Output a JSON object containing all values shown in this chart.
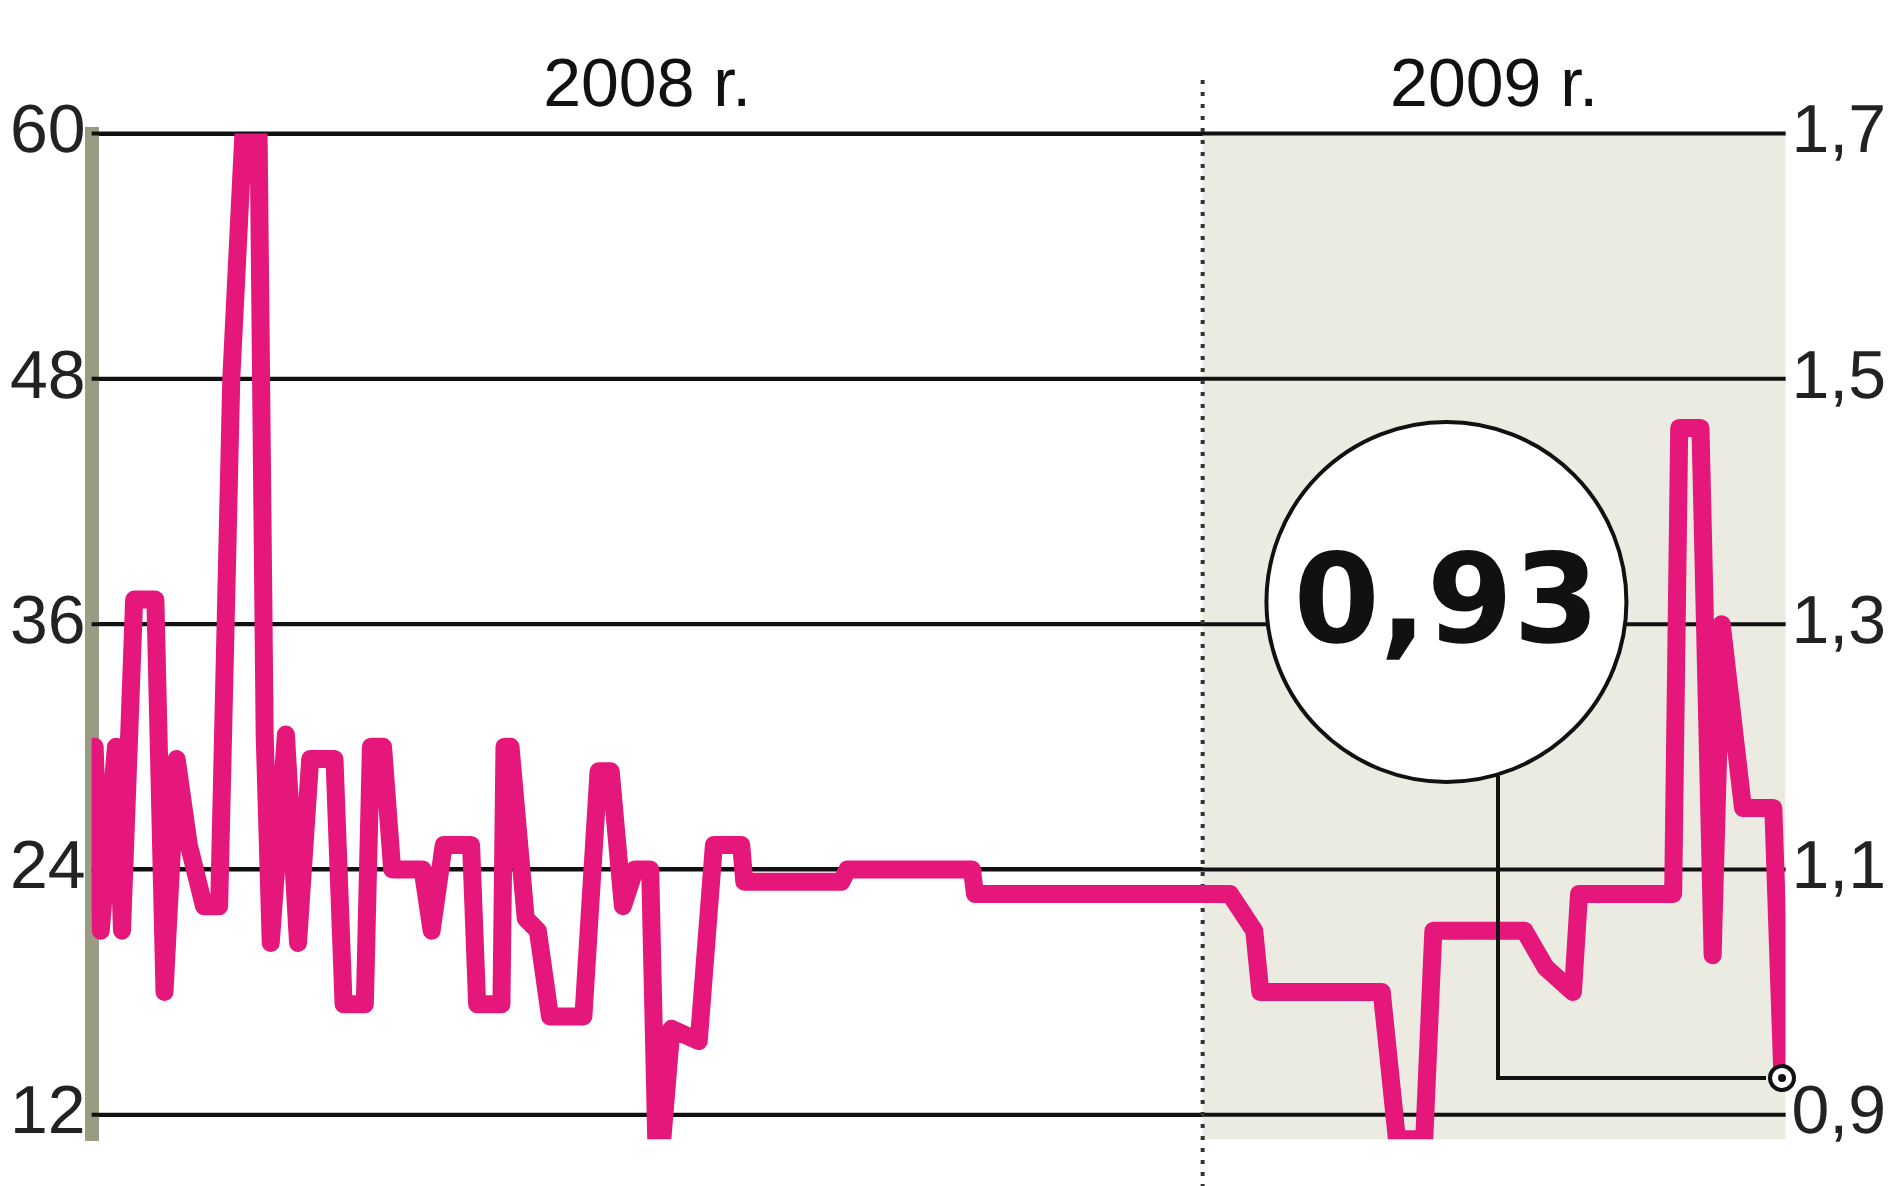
{
  "chart_data": {
    "type": "line",
    "x": [
      "2008-01-02",
      "2008-01-04",
      "2008-01-09",
      "2008-01-11",
      "2008-01-15",
      "2008-01-22",
      "2008-01-25",
      "2008-01-29",
      "2008-02-02",
      "2008-02-07",
      "2008-02-12",
      "2008-02-16",
      "2008-02-20",
      "2008-02-25",
      "2008-02-27",
      "2008-02-29",
      "2008-03-05",
      "2008-03-09",
      "2008-03-13",
      "2008-03-21",
      "2008-03-24",
      "2008-03-31",
      "2008-04-02",
      "2008-04-06",
      "2008-04-09",
      "2008-04-19",
      "2008-04-22",
      "2008-04-26",
      "2008-05-05",
      "2008-05-07",
      "2008-05-15",
      "2008-05-16",
      "2008-05-18",
      "2008-05-23",
      "2008-05-27",
      "2008-05-31",
      "2008-06-11",
      "2008-06-16",
      "2008-06-20",
      "2008-06-24",
      "2008-06-28",
      "2008-07-03",
      "2008-07-05",
      "2008-07-07",
      "2008-07-10",
      "2008-07-19",
      "2008-07-24",
      "2008-08-02",
      "2008-08-03",
      "2008-09-04",
      "2008-09-06",
      "2008-10-14",
      "2008-10-17",
      "2008-10-18",
      "2009-01-10",
      "2009-01-18",
      "2009-01-20",
      "2009-03-01",
      "2009-03-06",
      "2009-03-15",
      "2009-03-18",
      "2009-04-17",
      "2009-04-24",
      "2009-05-03",
      "2009-05-05",
      "2009-06-05",
      "2009-06-07",
      "2009-06-14",
      "2009-06-18",
      "2009-06-21",
      "2009-06-28",
      "2009-07-08",
      "2009-07-11"
    ],
    "series": [
      {
        "color": "#e5177b",
        "axis": "y2",
        "values": [
          1.2,
          1.05,
          1.2,
          1.05,
          1.32,
          1.32,
          1.0,
          1.19,
          1.12,
          1.07,
          1.07,
          1.5,
          1.7,
          1.7,
          1.21,
          1.04,
          1.21,
          1.04,
          1.19,
          1.19,
          0.99,
          0.99,
          1.2,
          1.2,
          1.1,
          1.1,
          1.05,
          1.12,
          1.12,
          0.99,
          0.99,
          1.2,
          1.2,
          1.06,
          1.05,
          0.98,
          0.98,
          1.18,
          1.18,
          1.07,
          1.1,
          1.1,
          0.88,
          0.88,
          0.97,
          0.96,
          1.12,
          1.12,
          1.09,
          1.09,
          1.1,
          1.1,
          1.1,
          1.08,
          1.08,
          1.05,
          1.0,
          1.0,
          0.88,
          0.88,
          1.05,
          1.05,
          1.02,
          1.0,
          1.08,
          1.08,
          1.46,
          1.46,
          1.03,
          1.3,
          1.15,
          1.15,
          0.93
        ]
      }
    ],
    "xlim": [
      "2008-01-01",
      "2009-07-12"
    ],
    "xticks": [
      {
        "value": "2008-07-02",
        "label": "2008 r."
      },
      {
        "value": "2009-04-07",
        "label": "2009 r."
      }
    ],
    "ylim": [
      10.8,
      60
    ],
    "yticks": [
      12,
      24,
      36,
      48,
      60
    ],
    "y2lim": [
      0.88,
      1.7
    ],
    "y2ticks": [
      {
        "value": 0.9,
        "label": "0,9"
      },
      {
        "value": 1.1,
        "label": "1,1"
      },
      {
        "value": 1.3,
        "label": "1,3"
      },
      {
        "value": 1.5,
        "label": "1,5"
      },
      {
        "value": 1.7,
        "label": "1,7"
      }
    ],
    "ref_lines": [
      {
        "axis": "x",
        "value": "2009-01-01",
        "line_style": "dotted",
        "color": "#333333"
      }
    ],
    "bands": [
      {
        "axis": "x",
        "from": "2009-01-01",
        "to": "2009-07-12",
        "color": "#ecebe1"
      }
    ],
    "annotations": [
      {
        "text": "0,93",
        "x": "2009-07-11",
        "y": 13.8
      }
    ],
    "grid": "y",
    "marker": "none",
    "line_style": "solid",
    "legend": false
  }
}
